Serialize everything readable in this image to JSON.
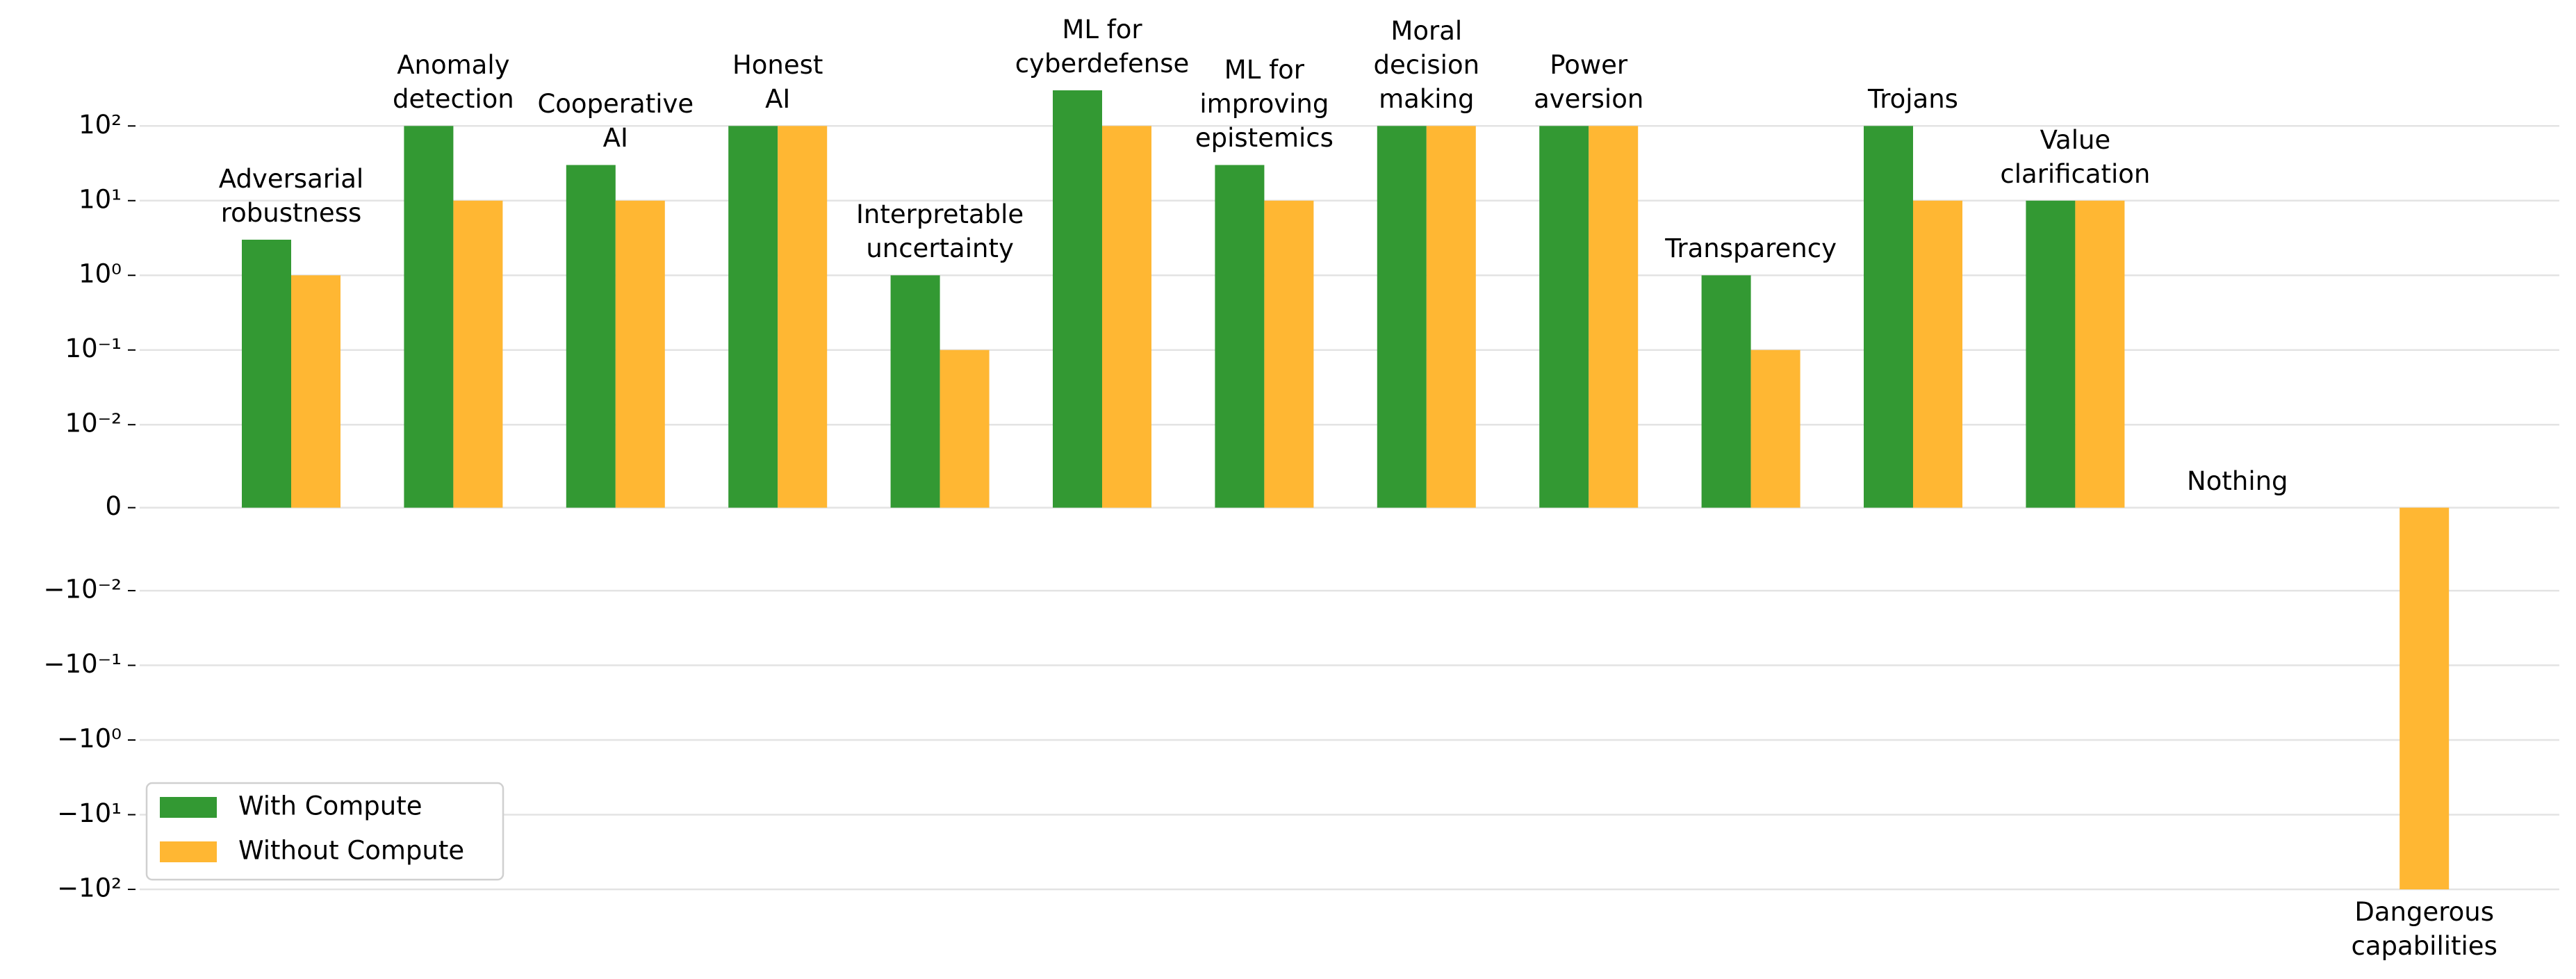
{
  "chart_data": {
    "type": "bar",
    "yscale": "symlog",
    "linthresh": 0.01,
    "categories": [
      "Adversarial\nrobustness",
      "Anomaly\ndetection",
      "Cooperative\nAI",
      "Honest\nAI",
      "Interpretable\nuncertainty",
      "ML for\ncyberdefense",
      "ML for\nimproving\nepistemics",
      "Moral\ndecision\nmaking",
      "Power\naversion",
      "Transparency",
      "Trojans",
      "Value\nclarification",
      "Nothing",
      "Dangerous\ncapabilities"
    ],
    "series": [
      {
        "name": "With Compute",
        "color": "#339933",
        "values": [
          3,
          100,
          30,
          100,
          1,
          300,
          30,
          100,
          100,
          1,
          100,
          10,
          0,
          0
        ]
      },
      {
        "name": "Without Compute",
        "color": "#ffb733",
        "values": [
          1,
          10,
          10,
          100,
          0.1,
          100,
          10,
          100,
          100,
          0.1,
          10,
          10,
          0,
          -100
        ]
      }
    ],
    "ylim": [
      -100,
      300
    ],
    "yticks": [
      {
        "value": 100,
        "label": "10²"
      },
      {
        "value": 10,
        "label": "10¹"
      },
      {
        "value": 1,
        "label": "10⁰"
      },
      {
        "value": 0.1,
        "label": "10⁻¹"
      },
      {
        "value": 0.01,
        "label": "10⁻²"
      },
      0,
      {
        "value": -0.01,
        "label": "−10⁻²"
      },
      {
        "value": -0.1,
        "label": "−10⁻¹"
      },
      {
        "value": -1,
        "label": "−10⁰"
      },
      {
        "value": -10,
        "label": "−10¹"
      },
      {
        "value": -100,
        "label": "−10²"
      }
    ],
    "grid": true,
    "legend": "lower left"
  }
}
